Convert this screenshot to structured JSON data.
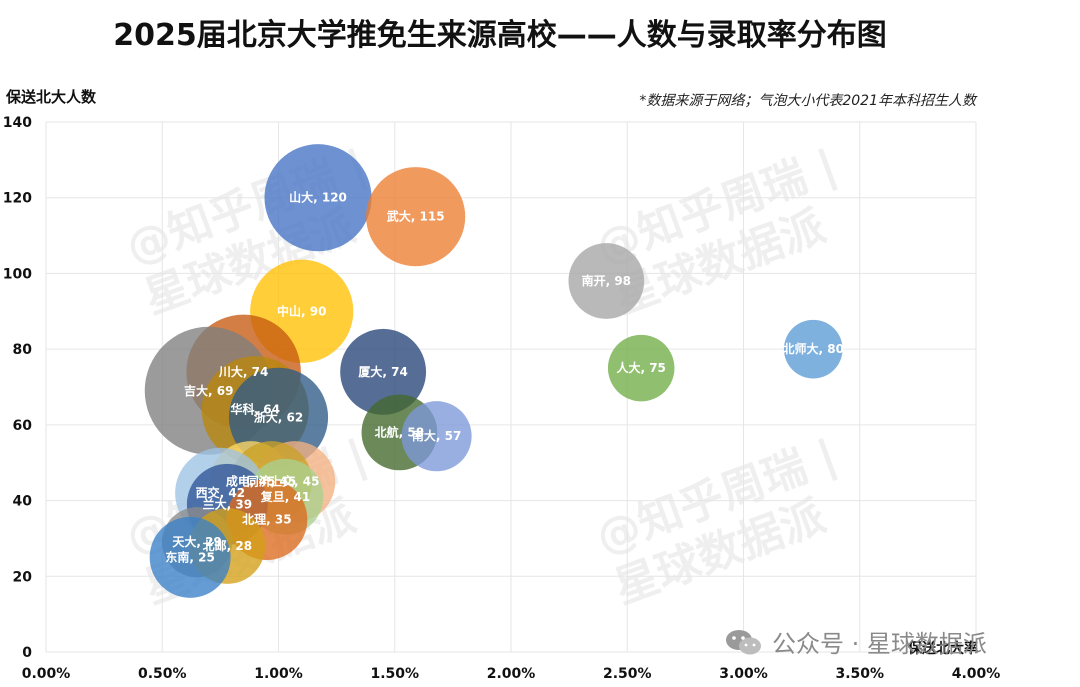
{
  "chart_data": {
    "type": "scatter",
    "title": "2025届北京大学推免生来源高校——人数与录取率分布图",
    "note": "*数据来源于网络；气泡大小代表2021年本科招生人数",
    "xlabel": "保送北大率",
    "ylabel": "保送北大人数",
    "xlim": [
      0,
      0.04
    ],
    "ylim": [
      0,
      140
    ],
    "x_ticks": [
      "0.00%",
      "0.50%",
      "1.00%",
      "1.50%",
      "2.00%",
      "2.50%",
      "3.00%",
      "3.50%",
      "4.00%"
    ],
    "y_ticks": [
      "0",
      "20",
      "40",
      "60",
      "80",
      "100",
      "120",
      "140"
    ],
    "grid": true,
    "points": [
      {
        "label": "山大, 120",
        "x": 0.0117,
        "y": 120,
        "size": 7000,
        "color": "#4472C4"
      },
      {
        "label": "武大, 115",
        "x": 0.0159,
        "y": 115,
        "size": 6000,
        "color": "#ED7D31"
      },
      {
        "label": "南开, 98",
        "x": 0.0241,
        "y": 98,
        "size": 3500,
        "color": "#A5A5A5"
      },
      {
        "label": "中山, 90",
        "x": 0.011,
        "y": 90,
        "size": 6500,
        "color": "#FFC000"
      },
      {
        "label": "北师大, 80",
        "x": 0.033,
        "y": 80,
        "size": 2100,
        "color": "#5B9BD5"
      },
      {
        "label": "人大, 75",
        "x": 0.0256,
        "y": 75,
        "size": 2700,
        "color": "#70AD47"
      },
      {
        "label": "川大, 74",
        "x": 0.0085,
        "y": 74,
        "size": 8000,
        "color": "#C55A11"
      },
      {
        "label": "厦大, 74",
        "x": 0.0145,
        "y": 74,
        "size": 4500,
        "color": "#264478"
      },
      {
        "label": "吉大, 69",
        "x": 0.007,
        "y": 69,
        "size": 10000,
        "color": "#7F7F7F"
      },
      {
        "label": "华科, 64",
        "x": 0.009,
        "y": 64,
        "size": 7000,
        "color": "#B8860B"
      },
      {
        "label": "浙大, 62",
        "x": 0.01,
        "y": 62,
        "size": 6000,
        "color": "#2E5B87"
      },
      {
        "label": "北航, 58",
        "x": 0.0152,
        "y": 58,
        "size": 3500,
        "color": "#43682B"
      },
      {
        "label": "南大, 57",
        "x": 0.0168,
        "y": 57,
        "size": 3000,
        "color": "#7C98D8"
      },
      {
        "label": "成电, 45",
        "x": 0.0088,
        "y": 45,
        "size": 4000,
        "color": "#FFD966"
      },
      {
        "label": "上交, 45",
        "x": 0.0107,
        "y": 45,
        "size": 4000,
        "color": "#F4B183"
      },
      {
        "label": "同济, 45",
        "x": 0.0097,
        "y": 45,
        "size": 4000,
        "color": "#C9A227"
      },
      {
        "label": "西交, 42",
        "x": 0.0075,
        "y": 42,
        "size": 5000,
        "color": "#9DC3E6"
      },
      {
        "label": "复旦, 41",
        "x": 0.0103,
        "y": 41,
        "size": 3500,
        "color": "#A9D18E"
      },
      {
        "label": "兰大, 39",
        "x": 0.0078,
        "y": 39,
        "size": 4000,
        "color": "#2F5597"
      },
      {
        "label": "北理, 35",
        "x": 0.0095,
        "y": 35,
        "size": 4000,
        "color": "#DD6A1F"
      },
      {
        "label": "天大, 29",
        "x": 0.0065,
        "y": 29,
        "size": 3000,
        "color": "#8C8C8C"
      },
      {
        "label": "北邮, 28",
        "x": 0.0078,
        "y": 28,
        "size": 3500,
        "color": "#D4A017"
      },
      {
        "label": "东南, 25",
        "x": 0.0062,
        "y": 25,
        "size": 4000,
        "color": "#3A80C6"
      }
    ]
  },
  "watermarks": [
    "@知乎周瑞 |\n星球数据派",
    "@知乎周瑞 |\n星球数据派",
    "@知乎周瑞 |\n星球数据派",
    "@知乎周瑞 |\n星球数据派"
  ],
  "footer": {
    "text": "公众号 · 星球数据派",
    "icon": "wechat-icon"
  }
}
